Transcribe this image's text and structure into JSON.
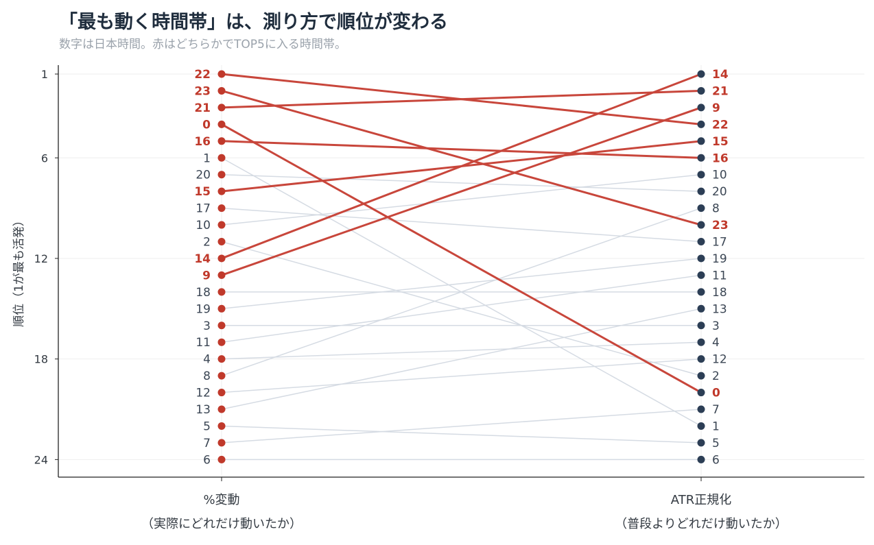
{
  "header": {
    "title": "「最も動く時間帯」は、測り方で順位が変わる",
    "subtitle": "数字は日本時間。赤はどちらかでTOP5に入る時間帯。"
  },
  "chart_data": {
    "type": "slope",
    "title": "「最も動く時間帯」は、測り方で順位が変わる",
    "subtitle": "数字は日本時間。赤はどちらかでTOP5に入る時間帯。",
    "ylabel": "順位（1が最も活発）",
    "ylim": [
      1,
      24
    ],
    "y_inverted": true,
    "yticks": [
      1,
      6,
      12,
      18,
      24
    ],
    "grid": true,
    "categories": [
      {
        "line1": "%変動",
        "line2": "（実際にどれだけ動いたか）"
      },
      {
        "line1": "ATR正規化",
        "line2": "（普段よりどれだけ動いたか）"
      }
    ],
    "left_order": [
      22,
      23,
      21,
      0,
      16,
      1,
      20,
      15,
      17,
      10,
      2,
      14,
      9,
      18,
      19,
      3,
      11,
      4,
      8,
      12,
      13,
      5,
      7,
      6
    ],
    "right_order": [
      14,
      21,
      9,
      22,
      15,
      16,
      10,
      20,
      8,
      23,
      17,
      19,
      11,
      18,
      13,
      3,
      4,
      12,
      2,
      0,
      7,
      1,
      5,
      6
    ],
    "highlighted_hours": [
      22,
      23,
      21,
      0,
      16,
      15,
      14,
      9
    ],
    "colors": {
      "highlight": "#c0392b",
      "highlight_line": "#c8463b",
      "muted_line": "#d5dbe3",
      "left_dot": "#c0392b",
      "right_dot": "#2c3e55",
      "muted_text": "#3b4654",
      "grid": "#eeeeee",
      "axis": "#222222"
    }
  }
}
